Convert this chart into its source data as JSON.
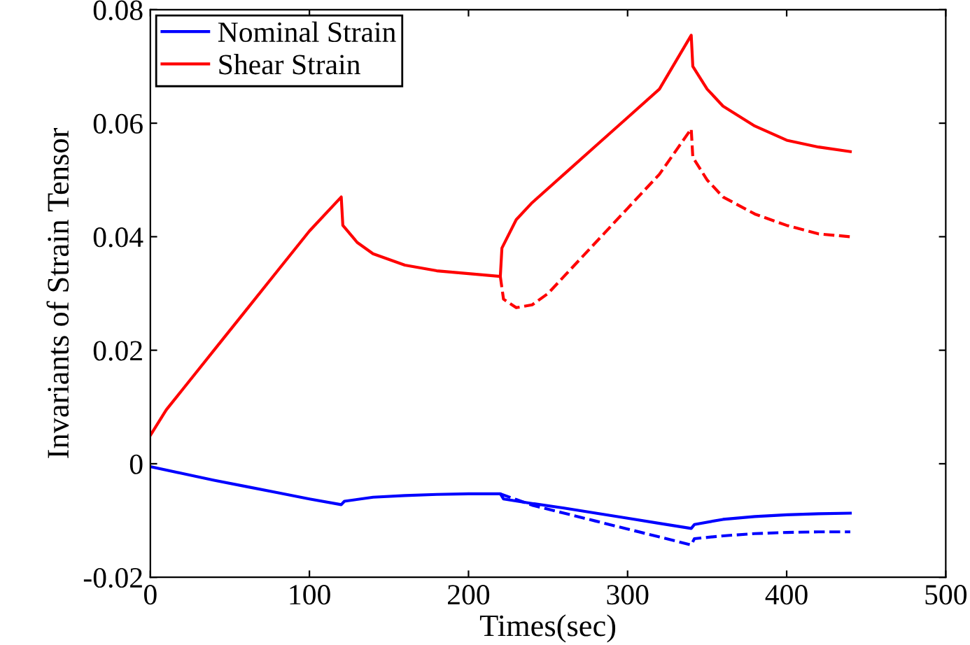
{
  "chart_data": {
    "type": "line",
    "xlabel": "Times(sec)",
    "ylabel": "Invariants of Strain Tensor",
    "xlim": [
      0,
      500
    ],
    "xticks": [
      0,
      100,
      200,
      300,
      400,
      500
    ],
    "ylim": [
      -0.02,
      0.08
    ],
    "yticks": [
      -0.02,
      0,
      0.02,
      0.04,
      0.06,
      0.08
    ],
    "legend": "top left",
    "grid": false,
    "marker": "none",
    "series": [
      {
        "name": "Nominal Strain",
        "color": "#0000ff",
        "line_style": "solid",
        "x": [
          0,
          20,
          40,
          60,
          80,
          100,
          120,
          122,
          140,
          160,
          180,
          200,
          220,
          222,
          240,
          260,
          280,
          300,
          320,
          340,
          342,
          360,
          380,
          400,
          420,
          440
        ],
        "values": [
          -0.0005,
          -0.0017,
          -0.0029,
          -0.004,
          -0.0051,
          -0.0062,
          -0.0072,
          -0.0066,
          -0.0059,
          -0.0056,
          -0.0054,
          -0.0053,
          -0.0053,
          -0.0062,
          -0.007,
          -0.0078,
          -0.0087,
          -0.0096,
          -0.0105,
          -0.0114,
          -0.0107,
          -0.0098,
          -0.0093,
          -0.009,
          -0.0088,
          -0.0087
        ]
      },
      {
        "name": "Shear Strain",
        "color": "#ff0000",
        "line_style": "solid",
        "x": [
          0,
          10,
          20,
          40,
          60,
          80,
          100,
          120,
          121,
          130,
          140,
          160,
          180,
          200,
          220,
          221,
          230,
          240,
          260,
          280,
          300,
          320,
          340,
          341,
          350,
          360,
          380,
          400,
          420,
          440
        ],
        "values": [
          0.005,
          0.0095,
          0.013,
          0.02,
          0.027,
          0.034,
          0.041,
          0.047,
          0.042,
          0.039,
          0.037,
          0.035,
          0.034,
          0.0335,
          0.033,
          0.038,
          0.043,
          0.046,
          0.051,
          0.056,
          0.061,
          0.066,
          0.0755,
          0.07,
          0.066,
          0.063,
          0.0595,
          0.057,
          0.0558,
          0.055
        ]
      },
      {
        "color": "#0000ff",
        "line_style": "dashed",
        "x": [
          220,
          230,
          240,
          260,
          280,
          300,
          320,
          340,
          342,
          360,
          380,
          400,
          420,
          440
        ],
        "values": [
          -0.0053,
          -0.0063,
          -0.0073,
          -0.0087,
          -0.0101,
          -0.0115,
          -0.0129,
          -0.0143,
          -0.0132,
          -0.0127,
          -0.0123,
          -0.0121,
          -0.012,
          -0.012
        ]
      },
      {
        "color": "#ff0000",
        "line_style": "dashed",
        "x": [
          220,
          222,
          230,
          240,
          250,
          260,
          280,
          300,
          320,
          340,
          341,
          350,
          360,
          380,
          400,
          420,
          440
        ],
        "values": [
          0.033,
          0.029,
          0.0275,
          0.028,
          0.03,
          0.033,
          0.039,
          0.045,
          0.051,
          0.059,
          0.054,
          0.05,
          0.047,
          0.044,
          0.042,
          0.0405,
          0.04
        ]
      }
    ]
  }
}
